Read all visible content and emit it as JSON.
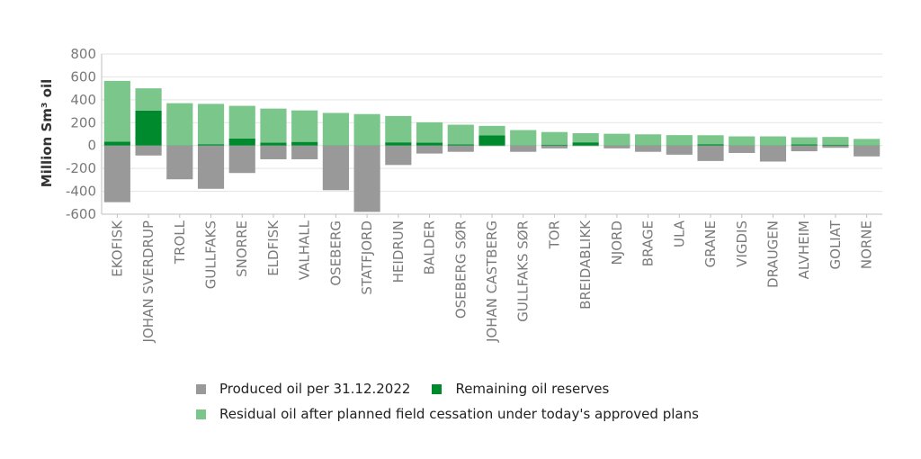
{
  "chart_data": {
    "type": "bar",
    "stacked": true,
    "ylabel": "Million Sm³ oil",
    "ylim": [
      -600,
      800
    ],
    "yticks": [
      800,
      600,
      400,
      200,
      0,
      -200,
      -400,
      -600
    ],
    "yticklabels": [
      "800",
      "600",
      "400",
      "200",
      "0",
      "-200",
      "-400",
      "-600"
    ],
    "grid": true,
    "legend_position": "bottom",
    "categories": [
      "EKOFISK",
      "JOHAN SVERDRUP",
      "TROLL",
      "GULLFAKS",
      "SNORRE",
      "ELDFISK",
      "VALHALL",
      "OSEBERG",
      "STATFJORD",
      "HEIDRUN",
      "BALDER",
      "OSEBERG SØR",
      "JOHAN CASTBERG",
      "GULLFAKS SØR",
      "TOR",
      "BREIDABLIKK",
      "NJORD",
      "BRAGE",
      "ULA",
      "GRANE",
      "VIGDIS",
      "DRAUGEN",
      "ALVHEIM",
      "GOLIAT",
      "NORNE"
    ],
    "series": [
      {
        "name": "Produced oil per 31.12.2022",
        "color": "#999999",
        "values": [
          -495,
          -87,
          -295,
          -378,
          -240,
          -120,
          -120,
          -390,
          -580,
          -170,
          -70,
          -55,
          -5,
          -55,
          -25,
          -5,
          -25,
          -55,
          -80,
          -135,
          -65,
          -140,
          -50,
          -20,
          -95
        ]
      },
      {
        "name": "Remaining oil reserves",
        "color": "#008a2e",
        "values": [
          35,
          305,
          3,
          12,
          62,
          25,
          32,
          3,
          3,
          28,
          25,
          10,
          90,
          3,
          8,
          28,
          3,
          3,
          3,
          12,
          3,
          3,
          10,
          8,
          3
        ]
      },
      {
        "name": "Residual oil after planned field cessation under today's approved plans",
        "color": "#7ac68b",
        "values": [
          530,
          195,
          367,
          352,
          285,
          298,
          275,
          282,
          272,
          230,
          178,
          172,
          82,
          132,
          110,
          80,
          100,
          95,
          88,
          78,
          77,
          77,
          62,
          67,
          55
        ]
      }
    ]
  }
}
